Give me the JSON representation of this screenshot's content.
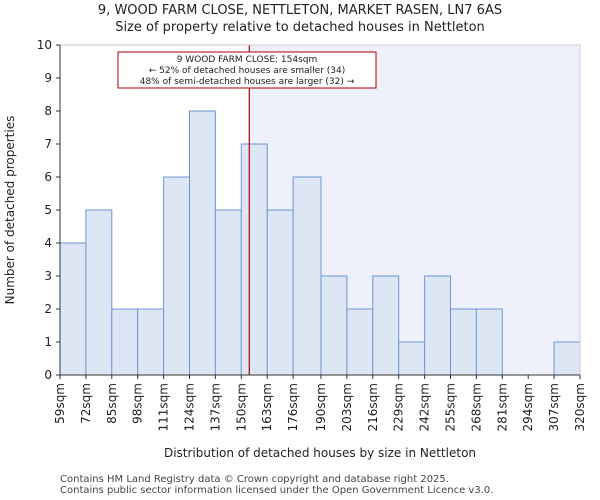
{
  "chart_data": {
    "type": "bar",
    "title": "9, WOOD FARM CLOSE, NETTLETON, MARKET RASEN, LN7 6AS",
    "subtitle": "Size of property relative to detached houses in Nettleton",
    "xlabel": "Distribution of detached houses by size in Nettleton",
    "ylabel": "Number of detached properties",
    "bin_edges": [
      59,
      72,
      85,
      98,
      111,
      124,
      137,
      150,
      163,
      176,
      190,
      203,
      216,
      229,
      242,
      255,
      268,
      281,
      294,
      307,
      320
    ],
    "tick_labels": [
      "59sqm",
      "72sqm",
      "85sqm",
      "98sqm",
      "111sqm",
      "124sqm",
      "137sqm",
      "150sqm",
      "163sqm",
      "176sqm",
      "190sqm",
      "203sqm",
      "216sqm",
      "229sqm",
      "242sqm",
      "255sqm",
      "268sqm",
      "281sqm",
      "294sqm",
      "307sqm",
      "320sqm"
    ],
    "values": [
      4,
      5,
      2,
      2,
      6,
      8,
      5,
      7,
      5,
      6,
      3,
      2,
      3,
      1,
      3,
      2,
      2,
      0,
      0,
      1
    ],
    "ylim": [
      0,
      10
    ],
    "yticks": [
      0,
      1,
      2,
      3,
      4,
      5,
      6,
      7,
      8,
      9,
      10
    ],
    "marker_value": 154,
    "annotation": [
      "9 WOOD FARM CLOSE: 154sqm",
      "← 52% of detached houses are smaller (34)",
      "48% of semi-detached houses are larger (32) →"
    ],
    "grid": false,
    "colors": {
      "bar_fill": "#dce6f5",
      "bar_stroke": "#6e96d2",
      "highlight_bg": "#eef1fb",
      "marker": "#aa0000"
    }
  },
  "footer": [
    "Contains HM Land Registry data © Crown copyright and database right 2025.",
    "Contains public sector information licensed under the Open Government Licence v3.0."
  ]
}
